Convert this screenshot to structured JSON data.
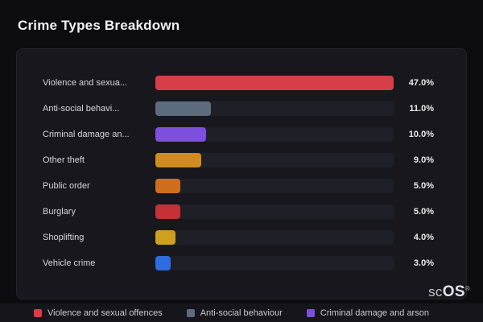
{
  "page": {
    "title": "Crime Types Breakdown"
  },
  "chart_data": {
    "type": "bar",
    "orientation": "horizontal",
    "title": "Crime Types Breakdown",
    "categories": [
      "Violence and sexua...",
      "Anti-social behavi...",
      "Criminal damage an...",
      "Other theft",
      "Public order",
      "Burglary",
      "Shoplifting",
      "Vehicle crime"
    ],
    "values": [
      47.0,
      11.0,
      10.0,
      9.0,
      5.0,
      5.0,
      4.0,
      3.0
    ],
    "value_labels": [
      "47.0%",
      "11.0%",
      "10.0%",
      "9.0%",
      "5.0%",
      "5.0%",
      "4.0%",
      "3.0%"
    ],
    "bar_colors": [
      "#d83e48",
      "#5c6b7e",
      "#7c4fdd",
      "#d18c1f",
      "#ce6e1e",
      "#c43236",
      "#cda01d",
      "#2e6ce0"
    ],
    "max_value": 47.0,
    "xlabel": "",
    "ylabel": "",
    "grid": false,
    "legend_position": "bottom",
    "legend": [
      {
        "label": "Violence and sexual offences",
        "color": "#d83e48"
      },
      {
        "label": "Anti-social behaviour",
        "color": "#5c6b7e"
      },
      {
        "label": "Criminal damage and arson",
        "color": "#7c4fdd"
      }
    ]
  },
  "branding": {
    "name_light": "sc",
    "name_bold": "OS",
    "registered": "®"
  }
}
